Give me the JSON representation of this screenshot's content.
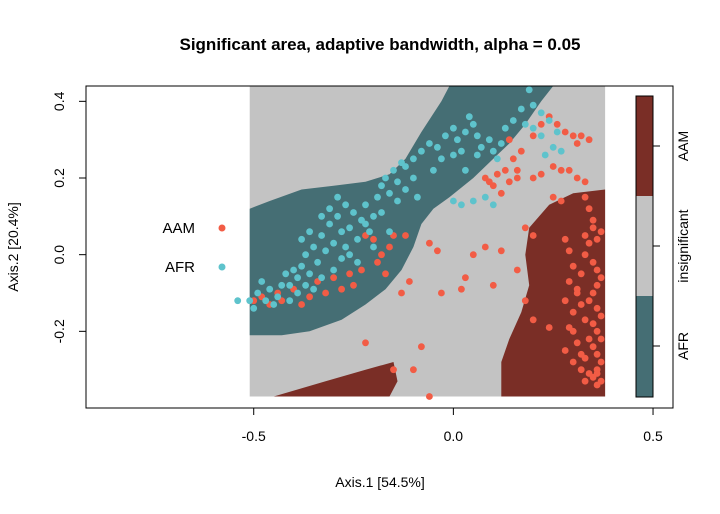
{
  "chart_data": {
    "type": "scatter",
    "title": "Significant area, adaptive bandwidth, alpha = 0.05",
    "xlabel": "Axis.1 [54.5%]",
    "ylabel": "Axis.2 [20.4%]",
    "xlim": [
      -0.92,
      0.55
    ],
    "ylim": [
      -0.4,
      0.44
    ],
    "x_ticks": [
      {
        "value": -0.5,
        "label": "-0.5"
      },
      {
        "value": 0.0,
        "label": "0.0"
      },
      {
        "value": 0.5,
        "label": "0.5"
      }
    ],
    "y_ticks": [
      {
        "value": -0.2,
        "label": "-0.2"
      },
      {
        "value": 0.0,
        "label": "0.0"
      },
      {
        "value": 0.2,
        "label": "0.2"
      },
      {
        "value": 0.4,
        "label": "0.4"
      }
    ],
    "grid": false,
    "legend_position": "left",
    "region_colors": {
      "AAM": "#7a2e26",
      "insignificant": "#c3c3c3",
      "AFR": "#456e74"
    },
    "colorbar": {
      "position": "right",
      "labels": [
        "AAM",
        "insignificant",
        "AFR"
      ],
      "colors": [
        "#7a2e26",
        "#c3c3c3",
        "#456e74"
      ]
    },
    "series": [
      {
        "name": "AAM",
        "color": "#f25c45",
        "points": [
          [
            -0.5,
            -0.12
          ],
          [
            -0.48,
            -0.11
          ],
          [
            -0.46,
            -0.13
          ],
          [
            -0.44,
            -0.1
          ],
          [
            -0.43,
            -0.12
          ],
          [
            -0.4,
            -0.09
          ],
          [
            -0.38,
            -0.13
          ],
          [
            -0.36,
            -0.11
          ],
          [
            -0.34,
            -0.07
          ],
          [
            -0.32,
            -0.1
          ],
          [
            -0.3,
            -0.06
          ],
          [
            -0.28,
            -0.09
          ],
          [
            -0.26,
            -0.05
          ],
          [
            -0.25,
            -0.08
          ],
          [
            -0.23,
            -0.04
          ],
          [
            -0.22,
            0.05
          ],
          [
            -0.2,
            0.04
          ],
          [
            -0.19,
            -0.02
          ],
          [
            -0.18,
            0.0
          ],
          [
            -0.17,
            -0.05
          ],
          [
            -0.16,
            0.02
          ],
          [
            -0.15,
            0.05
          ],
          [
            -0.13,
            -0.1
          ],
          [
            -0.12,
            0.05
          ],
          [
            -0.22,
            -0.23
          ],
          [
            -0.08,
            -0.24
          ],
          [
            -0.15,
            -0.3
          ],
          [
            -0.11,
            -0.07
          ],
          [
            -0.06,
            0.03
          ],
          [
            -0.04,
            0.01
          ],
          [
            -0.03,
            -0.1
          ],
          [
            0.02,
            -0.09
          ],
          [
            0.03,
            -0.06
          ],
          [
            0.05,
            0.0
          ],
          [
            0.08,
            0.02
          ],
          [
            0.1,
            -0.08
          ],
          [
            0.12,
            0.01
          ],
          [
            0.16,
            -0.04
          ],
          [
            0.18,
            0.07
          ],
          [
            0.2,
            0.05
          ],
          [
            0.08,
            0.2
          ],
          [
            0.1,
            0.18
          ],
          [
            0.12,
            0.16
          ],
          [
            0.14,
            0.19
          ],
          [
            0.16,
            0.2
          ],
          [
            0.13,
            0.22
          ],
          [
            0.11,
            0.21
          ],
          [
            0.09,
            0.19
          ],
          [
            0.15,
            0.25
          ],
          [
            0.17,
            0.27
          ],
          [
            0.14,
            0.3
          ],
          [
            0.16,
            0.22
          ],
          [
            0.2,
            0.2
          ],
          [
            0.22,
            0.21
          ],
          [
            0.25,
            0.23
          ],
          [
            0.27,
            0.22
          ],
          [
            0.29,
            0.22
          ],
          [
            0.31,
            0.2
          ],
          [
            0.33,
            0.19
          ],
          [
            0.3,
            0.31
          ],
          [
            0.28,
            0.32
          ],
          [
            0.26,
            0.34
          ],
          [
            0.22,
            0.34
          ],
          [
            0.2,
            0.31
          ],
          [
            0.24,
            0.36
          ],
          [
            0.32,
            0.31
          ],
          [
            0.34,
            0.3
          ],
          [
            0.31,
            0.29
          ],
          [
            0.25,
            0.15
          ],
          [
            0.27,
            0.14
          ],
          [
            -0.06,
            -0.37
          ],
          [
            -0.1,
            -0.3
          ],
          [
            0.18,
            -0.12
          ],
          [
            0.2,
            -0.17
          ],
          [
            0.24,
            -0.19
          ],
          [
            0.28,
            -0.25
          ],
          [
            0.3,
            -0.28
          ],
          [
            0.32,
            -0.26
          ],
          [
            0.3,
            -0.2
          ],
          [
            0.31,
            -0.1
          ],
          [
            0.32,
            -0.05
          ],
          [
            0.33,
            0.0
          ],
          [
            0.34,
            0.03
          ],
          [
            0.33,
            0.05
          ],
          [
            0.35,
            0.07
          ],
          [
            0.36,
            0.04
          ],
          [
            0.37,
            0.06
          ],
          [
            0.35,
            0.09
          ],
          [
            0.34,
            0.12
          ],
          [
            0.33,
            0.15
          ],
          [
            0.35,
            -0.02
          ],
          [
            0.36,
            -0.04
          ],
          [
            0.37,
            -0.06
          ],
          [
            0.36,
            -0.08
          ],
          [
            0.35,
            -0.1
          ],
          [
            0.34,
            -0.12
          ],
          [
            0.36,
            -0.14
          ],
          [
            0.37,
            -0.16
          ],
          [
            0.35,
            -0.18
          ],
          [
            0.36,
            -0.2
          ],
          [
            0.37,
            -0.22
          ],
          [
            0.35,
            -0.24
          ],
          [
            0.36,
            -0.26
          ],
          [
            0.37,
            -0.28
          ],
          [
            0.36,
            -0.3
          ],
          [
            0.35,
            -0.32
          ],
          [
            0.37,
            -0.33
          ],
          [
            0.36,
            -0.34
          ],
          [
            0.34,
            -0.31
          ],
          [
            0.33,
            -0.27
          ],
          [
            0.34,
            -0.22
          ],
          [
            0.33,
            -0.17
          ],
          [
            0.32,
            -0.13
          ],
          [
            0.31,
            -0.09
          ],
          [
            0.3,
            -0.03
          ],
          [
            0.29,
            0.01
          ],
          [
            0.28,
            0.04
          ],
          [
            0.29,
            -0.07
          ],
          [
            0.28,
            -0.12
          ],
          [
            0.3,
            -0.15
          ],
          [
            0.29,
            -0.19
          ],
          [
            0.31,
            -0.23
          ],
          [
            0.32,
            -0.3
          ],
          [
            0.33,
            -0.33
          ],
          [
            0.36,
            -0.31
          ]
        ]
      },
      {
        "name": "AFR",
        "color": "#5ec3cc",
        "points": [
          [
            -0.51,
            -0.12
          ],
          [
            -0.49,
            -0.1
          ],
          [
            -0.47,
            -0.12
          ],
          [
            -0.46,
            -0.09
          ],
          [
            -0.44,
            -0.11
          ],
          [
            -0.43,
            -0.08
          ],
          [
            -0.42,
            -0.05
          ],
          [
            -0.41,
            -0.08
          ],
          [
            -0.4,
            -0.04
          ],
          [
            -0.39,
            -0.06
          ],
          [
            -0.38,
            -0.03
          ],
          [
            -0.37,
            0.0
          ],
          [
            -0.36,
            -0.05
          ],
          [
            -0.35,
            0.02
          ],
          [
            -0.34,
            -0.02
          ],
          [
            -0.33,
            0.05
          ],
          [
            -0.32,
            0.01
          ],
          [
            -0.31,
            0.08
          ],
          [
            -0.3,
            0.03
          ],
          [
            -0.29,
            0.1
          ],
          [
            -0.28,
            0.06
          ],
          [
            -0.27,
            0.02
          ],
          [
            -0.26,
            0.07
          ],
          [
            -0.25,
            0.11
          ],
          [
            -0.24,
            0.04
          ],
          [
            -0.23,
            0.09
          ],
          [
            -0.22,
            0.13
          ],
          [
            -0.21,
            0.06
          ],
          [
            -0.2,
            0.1
          ],
          [
            -0.19,
            0.15
          ],
          [
            -0.18,
            0.18
          ],
          [
            -0.17,
            0.2
          ],
          [
            -0.16,
            0.16
          ],
          [
            -0.15,
            0.22
          ],
          [
            -0.14,
            0.19
          ],
          [
            -0.13,
            0.24
          ],
          [
            -0.12,
            0.23
          ],
          [
            -0.1,
            0.25
          ],
          [
            -0.08,
            0.27
          ],
          [
            -0.06,
            0.29
          ],
          [
            -0.04,
            0.28
          ],
          [
            -0.02,
            0.31
          ],
          [
            0.0,
            0.33
          ],
          [
            0.01,
            0.3
          ],
          [
            0.03,
            0.32
          ],
          [
            0.05,
            0.34
          ],
          [
            0.06,
            0.31
          ],
          [
            0.04,
            0.36
          ],
          [
            0.07,
            0.28
          ],
          [
            0.09,
            0.3
          ],
          [
            0.1,
            0.27
          ],
          [
            0.11,
            0.25
          ],
          [
            0.13,
            0.33
          ],
          [
            0.15,
            0.35
          ],
          [
            0.17,
            0.38
          ],
          [
            0.18,
            0.34
          ],
          [
            0.19,
            0.43
          ],
          [
            0.2,
            0.39
          ],
          [
            0.22,
            0.37
          ],
          [
            0.24,
            0.35
          ],
          [
            0.26,
            0.32
          ],
          [
            0.22,
            0.31
          ],
          [
            0.2,
            0.33
          ],
          [
            -0.18,
            0.11
          ],
          [
            -0.16,
            0.06
          ],
          [
            -0.2,
            0.02
          ],
          [
            -0.22,
            0.08
          ],
          [
            -0.26,
            0.0
          ],
          [
            -0.28,
            -0.01
          ],
          [
            -0.3,
            -0.04
          ],
          [
            -0.33,
            -0.06
          ],
          [
            -0.35,
            -0.09
          ],
          [
            -0.37,
            -0.08
          ],
          [
            -0.39,
            -0.1
          ],
          [
            -0.41,
            -0.12
          ],
          [
            -0.45,
            -0.13
          ],
          [
            -0.5,
            -0.14
          ],
          [
            -0.54,
            -0.12
          ],
          [
            -0.48,
            -0.07
          ],
          [
            0.0,
            0.14
          ],
          [
            0.02,
            0.13
          ],
          [
            0.05,
            0.14
          ],
          [
            0.08,
            0.15
          ],
          [
            0.1,
            0.13
          ],
          [
            0.03,
            0.22
          ],
          [
            0.06,
            0.26
          ],
          [
            0.12,
            0.29
          ],
          [
            0.25,
            0.28
          ],
          [
            0.27,
            0.27
          ],
          [
            0.23,
            0.26
          ],
          [
            -0.14,
            0.14
          ],
          [
            -0.12,
            0.17
          ],
          [
            -0.1,
            0.2
          ],
          [
            -0.09,
            0.15
          ],
          [
            -0.05,
            0.22
          ],
          [
            -0.03,
            0.25
          ],
          [
            0.0,
            0.26
          ],
          [
            0.02,
            0.27
          ],
          [
            -0.24,
            -0.02
          ],
          [
            -0.27,
            0.13
          ],
          [
            -0.29,
            0.15
          ],
          [
            -0.31,
            0.12
          ],
          [
            -0.33,
            0.1
          ],
          [
            -0.36,
            0.06
          ],
          [
            -0.38,
            0.04
          ]
        ]
      }
    ]
  }
}
